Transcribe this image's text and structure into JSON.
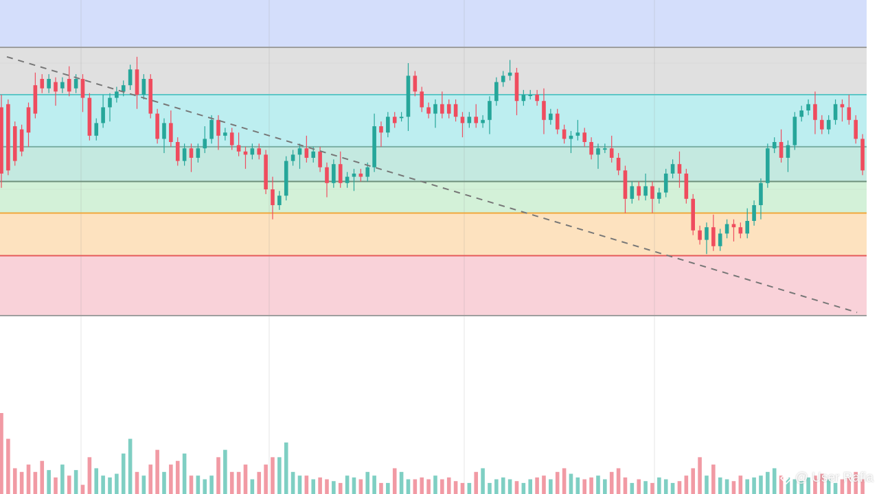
{
  "chart_data": {
    "type": "candlestick",
    "x": {
      "count": 128,
      "label": ""
    },
    "y": {
      "range": [
        0,
        100
      ],
      "label": ""
    },
    "zones": [
      {
        "name": "",
        "from": 85,
        "to": 100,
        "color": "#d4defb"
      },
      {
        "name": "",
        "from": 70,
        "to": 85,
        "color": "#e0e0e0"
      },
      {
        "name": "",
        "from": 53.5,
        "to": 70,
        "color": "#bdeef0"
      },
      {
        "name": "",
        "from": 42.5,
        "to": 53.5,
        "color": "#c4e9e0"
      },
      {
        "name": "",
        "from": 32.5,
        "to": 42.5,
        "color": "#d3f1d8"
      },
      {
        "name": "",
        "from": 19,
        "to": 32.5,
        "color": "#fde2bf"
      },
      {
        "name": "",
        "from": 0,
        "to": 19,
        "color": "#f9d2d9"
      }
    ],
    "levels": [
      {
        "value": 85,
        "color": "#9e9e9e"
      },
      {
        "value": 70,
        "color": "#5cc6c6"
      },
      {
        "value": 53.5,
        "color": "#7aaea4"
      },
      {
        "value": 42.5,
        "color": "#6e8f7a"
      },
      {
        "value": 32.5,
        "color": "#f0a63a"
      },
      {
        "value": 19,
        "color": "#e55a5a"
      },
      {
        "value": 0,
        "color": "#9e9e9e"
      }
    ],
    "trendline": {
      "from": [
        0,
        82
      ],
      "to": [
        127,
        1
      ],
      "color": "#777777",
      "style": "dashed"
    },
    "colors": {
      "up": "#26a69a",
      "down": "#ef4c5e",
      "volume_up": "#7fcfc3",
      "volume_down": "#f19aa4"
    },
    "candles": [
      [
        0,
        66,
        45
      ],
      [
        1,
        67,
        46
      ],
      [
        2,
        60,
        49
      ],
      [
        3,
        59,
        52
      ],
      [
        4,
        66,
        58
      ],
      [
        5,
        73,
        64
      ],
      [
        6,
        75,
        72
      ],
      [
        7,
        72,
        75
      ],
      [
        8,
        74,
        71
      ],
      [
        9,
        72,
        74
      ],
      [
        10,
        75,
        71
      ],
      [
        11,
        72,
        75
      ],
      [
        12,
        75,
        69
      ],
      [
        13,
        69,
        57
      ],
      [
        14,
        57,
        61
      ],
      [
        15,
        61,
        66
      ],
      [
        16,
        66,
        69
      ],
      [
        17,
        69,
        71
      ],
      [
        18,
        71,
        73
      ],
      [
        19,
        73,
        78
      ],
      [
        20,
        78,
        70
      ],
      [
        21,
        70,
        75
      ],
      [
        22,
        75,
        64
      ],
      [
        23,
        64,
        56
      ],
      [
        24,
        56,
        61
      ],
      [
        25,
        61,
        55
      ],
      [
        26,
        55,
        49
      ],
      [
        27,
        49,
        53
      ],
      [
        28,
        53,
        50
      ],
      [
        29,
        50,
        53
      ],
      [
        30,
        53,
        56
      ],
      [
        31,
        56,
        62
      ],
      [
        32,
        62,
        57
      ],
      [
        33,
        57,
        58
      ],
      [
        34,
        58,
        54
      ],
      [
        35,
        54,
        52
      ],
      [
        36,
        52,
        51
      ],
      [
        37,
        51,
        53
      ],
      [
        38,
        53,
        51
      ],
      [
        39,
        51,
        40
      ],
      [
        40,
        40,
        35
      ],
      [
        41,
        35,
        38
      ],
      [
        42,
        38,
        49
      ],
      [
        43,
        49,
        51
      ],
      [
        44,
        51,
        53
      ],
      [
        45,
        53,
        50
      ],
      [
        46,
        50,
        52
      ],
      [
        47,
        52,
        47
      ],
      [
        48,
        47,
        42
      ],
      [
        49,
        42,
        48
      ],
      [
        50,
        48,
        42
      ],
      [
        51,
        42,
        44
      ],
      [
        52,
        44,
        45
      ],
      [
        53,
        45,
        44
      ],
      [
        54,
        44,
        47
      ],
      [
        55,
        47,
        60
      ],
      [
        56,
        60,
        58
      ],
      [
        57,
        58,
        63
      ],
      [
        58,
        63,
        61
      ],
      [
        59,
        63,
        63
      ],
      [
        60,
        63,
        76
      ],
      [
        61,
        76,
        71
      ],
      [
        62,
        71,
        66
      ],
      [
        63,
        66,
        64
      ],
      [
        64,
        64,
        67
      ],
      [
        65,
        67,
        64
      ],
      [
        66,
        67,
        64
      ],
      [
        67,
        67,
        63
      ],
      [
        68,
        63,
        61
      ],
      [
        69,
        61,
        63
      ],
      [
        70,
        63,
        61
      ],
      [
        71,
        61,
        62
      ],
      [
        72,
        62,
        68
      ],
      [
        73,
        68,
        74
      ],
      [
        74,
        74,
        76
      ],
      [
        75,
        76,
        77
      ],
      [
        76,
        77,
        68
      ],
      [
        77,
        68,
        70
      ],
      [
        78,
        70,
        70
      ],
      [
        79,
        70,
        68
      ],
      [
        80,
        68,
        62
      ],
      [
        81,
        62,
        64
      ],
      [
        82,
        64,
        59
      ],
      [
        83,
        59,
        56
      ],
      [
        84,
        56,
        57
      ],
      [
        85,
        57,
        58
      ],
      [
        86,
        58,
        55
      ],
      [
        87,
        55,
        51
      ],
      [
        88,
        51,
        53
      ],
      [
        89,
        53,
        53
      ],
      [
        90,
        53,
        50
      ],
      [
        91,
        50,
        46
      ],
      [
        92,
        46,
        37
      ],
      [
        93,
        37,
        41
      ],
      [
        94,
        41,
        38
      ],
      [
        95,
        38,
        41
      ],
      [
        96,
        41,
        37
      ],
      [
        97,
        37,
        39
      ],
      [
        98,
        39,
        45
      ],
      [
        99,
        45,
        48
      ],
      [
        100,
        48,
        45
      ],
      [
        101,
        45,
        37
      ],
      [
        102,
        37,
        27
      ],
      [
        103,
        27,
        24
      ],
      [
        104,
        24,
        28
      ],
      [
        105,
        28,
        22
      ],
      [
        106,
        22,
        26
      ],
      [
        107,
        26,
        29
      ],
      [
        108,
        29,
        28
      ],
      [
        109,
        28,
        26
      ],
      [
        110,
        26,
        30
      ],
      [
        111,
        30,
        35
      ],
      [
        112,
        35,
        42
      ],
      [
        113,
        42,
        53
      ],
      [
        114,
        53,
        55
      ],
      [
        115,
        55,
        50
      ],
      [
        116,
        50,
        54
      ],
      [
        117,
        54,
        63
      ],
      [
        118,
        63,
        65
      ],
      [
        119,
        65,
        67
      ],
      [
        120,
        67,
        62
      ],
      [
        121,
        62,
        59
      ],
      [
        122,
        59,
        62
      ],
      [
        123,
        62,
        67
      ],
      [
        124,
        67,
        66
      ],
      [
        125,
        66,
        62
      ],
      [
        126,
        62,
        56
      ],
      [
        127,
        56,
        46
      ]
    ],
    "volumes": [
      44,
      30,
      14,
      12,
      16,
      12,
      18,
      13,
      9,
      16,
      10,
      13,
      5,
      20,
      14,
      10,
      9,
      11,
      22,
      30,
      12,
      10,
      16,
      24,
      12,
      16,
      18,
      22,
      10,
      10,
      8,
      10,
      20,
      24,
      12,
      12,
      16,
      8,
      12,
      16,
      20,
      20,
      28,
      12,
      10,
      10,
      8,
      9,
      8,
      7,
      6,
      10,
      9,
      8,
      12,
      10,
      6,
      6,
      14,
      12,
      8,
      8,
      9,
      8,
      10,
      8,
      9,
      7,
      6,
      6,
      12,
      14,
      6,
      8,
      9,
      8,
      7,
      6,
      8,
      9,
      10,
      8,
      12,
      14,
      11,
      9,
      8,
      9,
      10,
      8,
      12,
      14,
      9,
      6,
      8,
      7,
      6,
      9,
      8,
      6,
      7,
      10,
      14,
      20,
      10,
      16,
      9,
      8,
      7,
      10,
      8,
      9,
      10,
      12,
      14,
      10,
      9,
      8,
      7,
      9,
      10,
      11,
      8,
      6,
      8,
      9,
      12,
      8
    ]
  },
  "watermark": {
    "text": "@ User Rafia",
    "icon": "diamond-logo-icon"
  }
}
